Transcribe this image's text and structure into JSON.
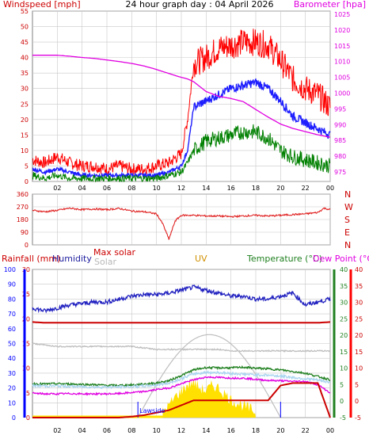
{
  "page": {
    "title": "24 hour graph day : 04 April 2026",
    "hour_labels": [
      "02",
      "04",
      "06",
      "08",
      "10",
      "12",
      "14",
      "16",
      "18",
      "20",
      "22",
      "00"
    ]
  },
  "colors": {
    "bg_top": "#ffffff",
    "plot_bg": "#ffffff",
    "grid": "#c8c8c8",
    "axis": "#7f7f7f",
    "gust": "#ff0000",
    "wind_avg": "#1e1eff",
    "wind_lull": "#008000",
    "barometer": "#e000e0",
    "direction": "#e02020",
    "humidity": "#2020c0",
    "max_solar": "#bebebe",
    "solar": "#ffe000",
    "solar_line": "#b0b0b0",
    "uv": "#d08000",
    "temperature": "#208020",
    "dew_point": "#e000e0",
    "rain": "#ff0000",
    "rain_axis": "#0000ff",
    "dark_red": "#cc0000",
    "light_blue": "#aad4f0"
  },
  "chart_data": [
    {
      "type": "line",
      "title": "24 hour graph day : 04 April 2026",
      "left_axis_label": "Windspeed [mph]",
      "right_axis_label": "Barometer [hpa]",
      "left_ylim": [
        0,
        55
      ],
      "left_ticks": [
        "0",
        "5",
        "10",
        "15",
        "20",
        "25",
        "30",
        "35",
        "40",
        "45",
        "50",
        "55"
      ],
      "right_ylim": [
        972,
        1026
      ],
      "right_ticks": [
        "975",
        "980",
        "985",
        "990",
        "995",
        "1000",
        "1005",
        "1010",
        "1015",
        "1020",
        "1025"
      ],
      "x_tick_labels": [
        "02",
        "04",
        "06",
        "08",
        "10",
        "12",
        "14",
        "16",
        "18",
        "20",
        "22",
        "00"
      ],
      "x_hours": [
        0,
        1,
        2,
        3,
        4,
        5,
        6,
        7,
        8,
        9,
        10,
        11,
        12,
        12.5,
        13,
        14,
        15,
        16,
        17,
        18,
        19,
        20,
        21,
        22,
        23,
        24
      ],
      "series": [
        {
          "key": "gust",
          "axis": "left",
          "values": [
            7,
            6,
            8,
            6,
            5,
            5,
            4,
            5,
            4,
            4,
            5,
            6,
            9,
            20,
            38,
            40,
            43,
            44,
            45,
            45,
            44,
            39,
            33,
            30,
            28,
            24
          ]
        },
        {
          "key": "avg",
          "axis": "left",
          "values": [
            4,
            3,
            4,
            3,
            2,
            2,
            2,
            2,
            2,
            2,
            2,
            3,
            5,
            10,
            24,
            26,
            28,
            30,
            31,
            32,
            30,
            26,
            21,
            19,
            17,
            15
          ]
        },
        {
          "key": "lull",
          "axis": "left",
          "values": [
            2,
            1,
            2,
            1,
            1,
            1,
            1,
            1,
            1,
            1,
            1,
            2,
            3,
            6,
            10,
            13,
            14,
            15,
            16,
            16,
            14,
            10,
            8,
            7,
            6,
            5
          ]
        },
        {
          "key": "barometer",
          "axis": "right",
          "values": [
            1012,
            1012,
            1012,
            1011.7,
            1011.3,
            1011,
            1010.5,
            1010,
            1009.4,
            1008.6,
            1007.5,
            1006.2,
            1005,
            1004.5,
            1003.6,
            1000.5,
            999,
            998.3,
            997.3,
            994.8,
            992.4,
            990.2,
            988.8,
            987.8,
            986.8,
            986.0
          ]
        }
      ]
    },
    {
      "type": "line",
      "title": "",
      "ylim": [
        0,
        360
      ],
      "left_ticks": [
        "0",
        "90",
        "180",
        "270",
        "360"
      ],
      "right_labels": [
        "N",
        "W",
        "S",
        "E",
        "N"
      ],
      "x_hours": [
        0,
        1,
        2,
        3,
        4,
        5,
        6,
        7,
        8,
        9,
        10,
        10.5,
        11,
        11.5,
        12,
        13,
        14,
        15,
        16,
        17,
        18,
        19,
        20,
        21,
        22,
        23,
        23.5,
        24
      ],
      "series": [
        {
          "key": "direction",
          "values": [
            245,
            235,
            245,
            260,
            250,
            255,
            250,
            258,
            240,
            235,
            220,
            150,
            40,
            170,
            210,
            210,
            205,
            205,
            200,
            205,
            210,
            205,
            210,
            215,
            220,
            230,
            260,
            250
          ]
        }
      ]
    },
    {
      "type": "line",
      "legend": [
        "Rainfall (mm)",
        "Humidity",
        "Max solar",
        "Solar",
        "UV",
        "Temperature (°C)",
        "Dew Point (°C)"
      ],
      "humidity_ylim": [
        0,
        100
      ],
      "humidity_ticks": [
        "0",
        "10",
        "20",
        "30",
        "40",
        "50",
        "60",
        "70",
        "80",
        "90",
        "100"
      ],
      "rain_ylim": [
        0,
        30
      ],
      "rain_ticks": [
        "0",
        "5",
        "10",
        "15",
        "20",
        "25",
        "30"
      ],
      "temp_ylim": [
        -5,
        40
      ],
      "temp_ticks": [
        "-5",
        "0",
        "5",
        "10",
        "15",
        "20",
        "25",
        "30",
        "35",
        "40"
      ],
      "x_tick_labels": [
        "02",
        "04",
        "06",
        "08",
        "10",
        "12",
        "14",
        "16",
        "18",
        "20",
        "22",
        "00"
      ],
      "annotation_sunrise": "Lawside",
      "x_hours": [
        0,
        1,
        2,
        3,
        4,
        5,
        6,
        7,
        8,
        9,
        10,
        11,
        12,
        13,
        14,
        15,
        16,
        17,
        18,
        19,
        20,
        21,
        22,
        23,
        24
      ],
      "series": [
        {
          "key": "humidity",
          "values": [
            74,
            72,
            74,
            76,
            77,
            78,
            78,
            80,
            82,
            83,
            83,
            84,
            86,
            88,
            86,
            84,
            82,
            82,
            80,
            80,
            82,
            84,
            76,
            78,
            80
          ]
        },
        {
          "key": "temperature",
          "values": [
            5.3,
            5.2,
            5.3,
            5.2,
            5.1,
            5.0,
            4.8,
            4.8,
            4.9,
            5.2,
            5.5,
            6.2,
            7.8,
            9.5,
            10.2,
            10.1,
            10.1,
            10.3,
            10.0,
            9.8,
            9.5,
            9.0,
            8.5,
            7.5,
            6.5
          ]
        },
        {
          "key": "dew_point",
          "values": [
            2.4,
            2.2,
            2.2,
            2.3,
            2.2,
            2.2,
            2.2,
            2.3,
            2.6,
            2.9,
            3.5,
            4.0,
            5.3,
            6.5,
            7.3,
            7.2,
            7.0,
            7.0,
            6.6,
            6.3,
            6.2,
            6.0,
            6.0,
            5.0,
            2.5
          ]
        },
        {
          "key": "temp_light",
          "values": [
            4.7,
            4.6,
            4.6,
            4.5,
            4.4,
            4.3,
            4.3,
            4.3,
            4.4,
            4.6,
            4.9,
            5.5,
            6.8,
            8.3,
            8.7,
            8.7,
            8.4,
            8.2,
            8.0,
            7.9,
            7.6,
            7.2,
            6.8,
            6.4,
            5.7
          ]
        },
        {
          "key": "grey_flat",
          "axis": "humidity",
          "values": [
            50,
            49,
            48,
            48,
            48,
            48,
            48,
            48,
            48,
            47,
            46,
            46,
            46,
            46,
            46,
            46,
            45,
            45,
            45,
            45,
            45,
            45,
            45,
            45,
            45
          ]
        },
        {
          "key": "dark_red_flat",
          "axis": "humidity",
          "values": [
            64.5,
            64,
            64,
            64,
            64,
            64,
            64,
            64,
            64,
            64,
            64,
            64,
            64,
            64,
            64,
            64,
            64,
            64,
            64,
            64,
            64,
            64,
            64,
            64,
            64.5
          ]
        },
        {
          "key": "rain",
          "axis": "rain",
          "values": [
            0,
            0,
            0,
            0,
            0,
            0,
            0,
            0,
            0.2,
            0.5,
            1.0,
            1.5,
            2.5,
            3.5,
            3.5,
            3.5,
            3.5,
            3.5,
            3.5,
            3.5,
            6.5,
            7.0,
            7.0,
            7.0,
            0
          ]
        }
      ],
      "max_solar": {
        "sunrise_hour": 8.5,
        "sunset_hour": 20.0,
        "peak_humidity_units": 56
      },
      "solar": {
        "x_hours": [
          10.5,
          11,
          11.5,
          12,
          12.5,
          13,
          13.5,
          14,
          14.5,
          15,
          15.5,
          16,
          16.5,
          17,
          17.5,
          18
        ],
        "values": [
          4,
          8,
          14,
          18,
          22,
          24,
          20,
          18,
          22,
          20,
          16,
          12,
          10,
          8,
          6,
          4
        ]
      }
    }
  ]
}
